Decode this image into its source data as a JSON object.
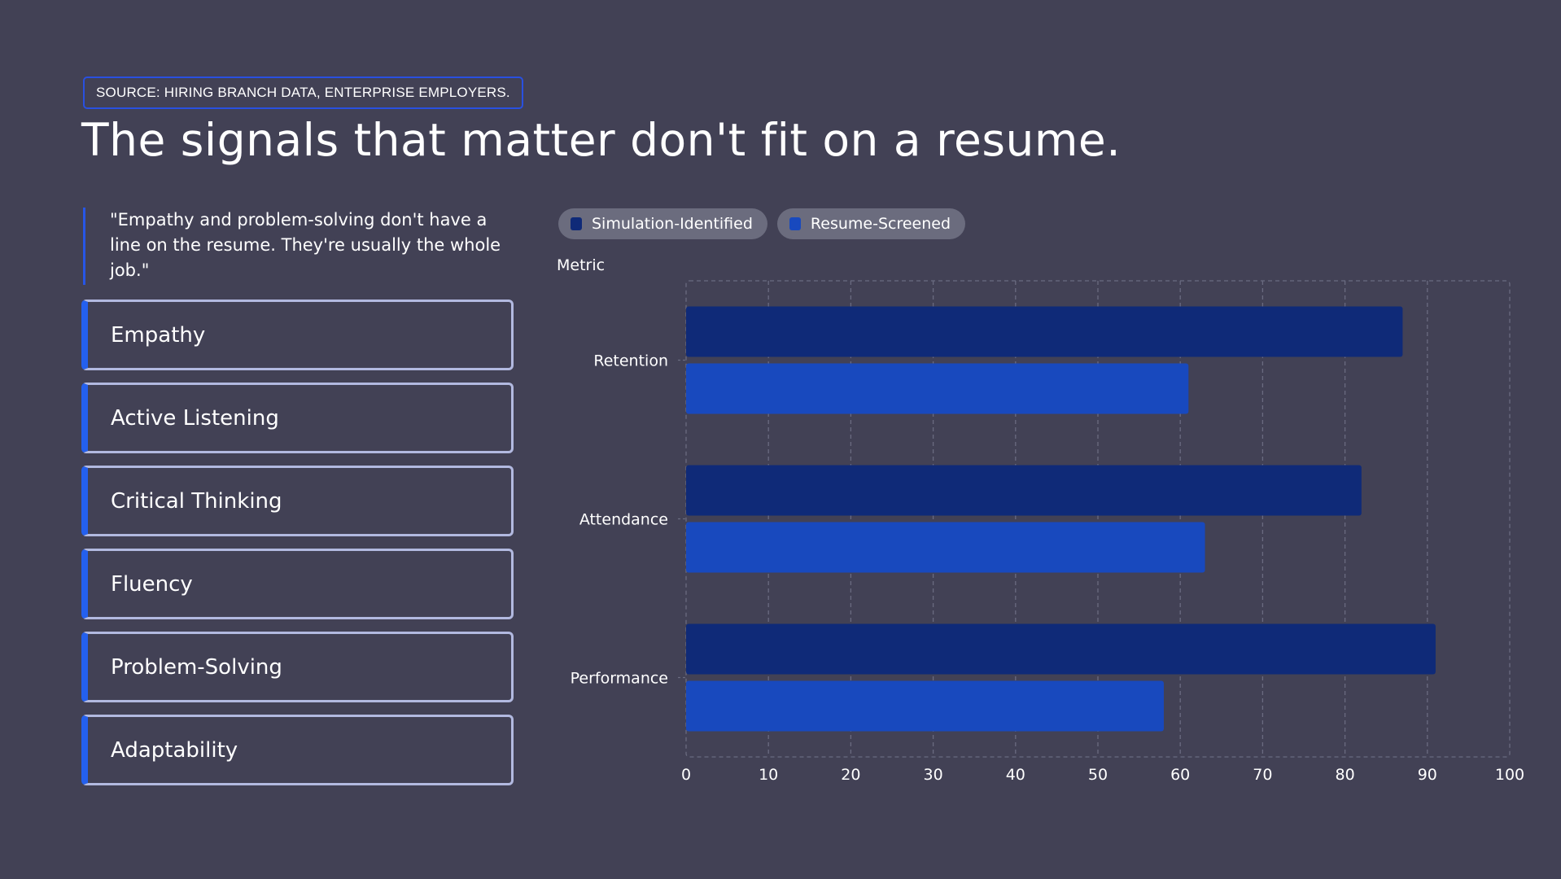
{
  "source_badge": "SOURCE: HIRING BRANCH DATA, ENTERPRISE EMPLOYERS.",
  "title": "The signals that matter don't fit on a resume.",
  "quote": "\"Empathy and problem-solving don't have a line on the resume. They're usually the whole job.\"",
  "signals": [
    "Empathy",
    "Active Listening",
    "Critical Thinking",
    "Fluency",
    "Problem-Solving",
    "Adaptability"
  ],
  "colors": {
    "background": "#424155",
    "accent": "#2460ee",
    "card_border": "#b2b9e0",
    "series_simulation": "#0f2a78",
    "series_resume": "#1849be"
  },
  "chart_data": {
    "type": "bar",
    "orientation": "horizontal",
    "ylabel": "Metric",
    "xlabel": "",
    "categories": [
      "Retention",
      "Attendance",
      "Performance"
    ],
    "series": [
      {
        "name": "Simulation-Identified",
        "color": "#0f2a78",
        "values": [
          87,
          82,
          91
        ]
      },
      {
        "name": "Resume-Screened",
        "color": "#1849be",
        "values": [
          61,
          63,
          58
        ]
      }
    ],
    "xlim": [
      0,
      100
    ],
    "xticks": [
      0,
      10,
      20,
      30,
      40,
      50,
      60,
      70,
      80,
      90,
      100
    ],
    "grid": true,
    "legend_position": "top-left"
  }
}
